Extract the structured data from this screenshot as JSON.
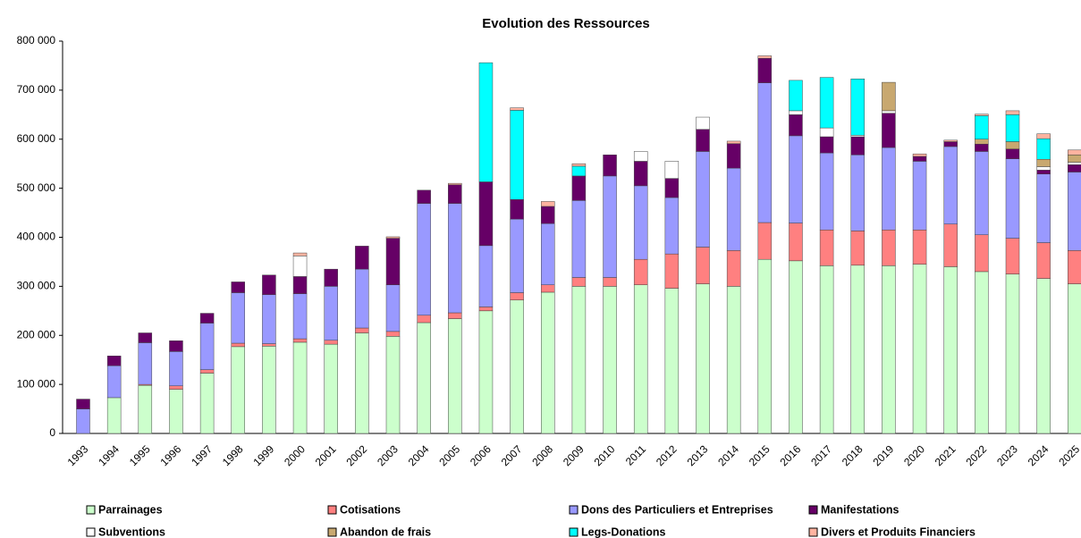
{
  "chart_data": {
    "type": "stacked_bar",
    "title": "Evolution des Ressources",
    "categories": [
      "1993",
      "1994",
      "1995",
      "1996",
      "1997",
      "1998",
      "1999",
      "2000",
      "2001",
      "2002",
      "2003",
      "2004",
      "2005",
      "2006",
      "2007",
      "2008",
      "2009",
      "2010",
      "2011",
      "2012",
      "2013",
      "2014",
      "2015",
      "2016",
      "2017",
      "2018",
      "2019",
      "2020",
      "2021",
      "2022",
      "2023",
      "2024",
      "2025"
    ],
    "series": [
      {
        "name": "Parrainages",
        "color": "#ccffcc",
        "values": [
          0,
          73000,
          98000,
          90000,
          123000,
          177000,
          178000,
          186000,
          182000,
          205000,
          198000,
          226000,
          234000,
          250000,
          272000,
          288000,
          300000,
          300000,
          303000,
          296000,
          305000,
          300000,
          355000,
          352000,
          342000,
          343000,
          342000,
          345000,
          340000,
          330000,
          325000,
          316000,
          305000
        ]
      },
      {
        "name": "Cotisations",
        "color": "#ff8080",
        "values": [
          0,
          0,
          2000,
          7000,
          7000,
          7000,
          5000,
          7000,
          8000,
          10000,
          10000,
          15000,
          12000,
          8000,
          15000,
          15000,
          18000,
          18000,
          52000,
          70000,
          75000,
          73000,
          75000,
          77000,
          73000,
          70000,
          73000,
          70000,
          87000,
          75000,
          73000,
          73000,
          68000
        ]
      },
      {
        "name": "Dons des Particuliers et Entreprises",
        "color": "#9999ff",
        "values": [
          50000,
          65000,
          85000,
          70000,
          95000,
          103000,
          100000,
          92000,
          110000,
          120000,
          95000,
          228000,
          223000,
          125000,
          150000,
          125000,
          157000,
          207000,
          150000,
          115000,
          195000,
          168000,
          285000,
          178000,
          157000,
          155000,
          168000,
          140000,
          158000,
          170000,
          162000,
          140000,
          160000
        ]
      },
      {
        "name": "Manifestations",
        "color": "#660066",
        "values": [
          20000,
          20000,
          20000,
          22000,
          20000,
          22000,
          40000,
          35000,
          35000,
          47000,
          95000,
          27000,
          38000,
          130000,
          40000,
          35000,
          50000,
          43000,
          50000,
          39000,
          45000,
          50000,
          50000,
          43000,
          33000,
          37000,
          70000,
          10000,
          10000,
          15000,
          20000,
          8000,
          15000
        ]
      },
      {
        "name": "Subventions",
        "color": "#ffffff",
        "values": [
          0,
          0,
          0,
          0,
          0,
          0,
          0,
          42000,
          0,
          0,
          0,
          0,
          0,
          0,
          0,
          0,
          0,
          0,
          20000,
          35000,
          25000,
          0,
          0,
          8000,
          18000,
          3000,
          5000,
          0,
          0,
          0,
          0,
          7000,
          5000
        ]
      },
      {
        "name": "Abandon de frais",
        "color": "#c8a870",
        "values": [
          0,
          0,
          0,
          0,
          0,
          0,
          0,
          0,
          0,
          0,
          0,
          0,
          0,
          0,
          0,
          0,
          0,
          0,
          0,
          0,
          0,
          0,
          0,
          0,
          0,
          0,
          58000,
          0,
          0,
          10000,
          15000,
          15000,
          15000
        ]
      },
      {
        "name": "Legs-Donations",
        "color": "#00ffff",
        "values": [
          0,
          0,
          0,
          0,
          0,
          0,
          0,
          0,
          0,
          0,
          0,
          0,
          0,
          243000,
          182000,
          0,
          20000,
          0,
          0,
          0,
          0,
          0,
          0,
          62000,
          103000,
          115000,
          0,
          0,
          0,
          48000,
          55000,
          42000,
          0
        ]
      },
      {
        "name": "Divers et Produits Financiers",
        "color": "#ffb3a0",
        "values": [
          0,
          0,
          0,
          0,
          0,
          0,
          0,
          6000,
          0,
          0,
          3000,
          0,
          3000,
          0,
          5000,
          10000,
          5000,
          0,
          0,
          0,
          0,
          5000,
          5000,
          0,
          0,
          0,
          0,
          5000,
          3000,
          3000,
          8000,
          10000,
          10000
        ]
      }
    ],
    "ylim": [
      0,
      800000
    ],
    "yticks": [
      0,
      {
        "value": 100000,
        "label": "100 000"
      },
      {
        "value": 200000,
        "label": "200 000"
      },
      {
        "value": 300000,
        "label": "300 000"
      },
      {
        "value": 400000,
        "label": "400 000"
      },
      {
        "value": 500000,
        "label": "500 000"
      },
      {
        "value": 600000,
        "label": "600 000"
      },
      {
        "value": 700000,
        "label": "700 000"
      },
      {
        "value": 800000,
        "label": "800 000"
      }
    ],
    "grid": false,
    "legend": "bottom"
  }
}
